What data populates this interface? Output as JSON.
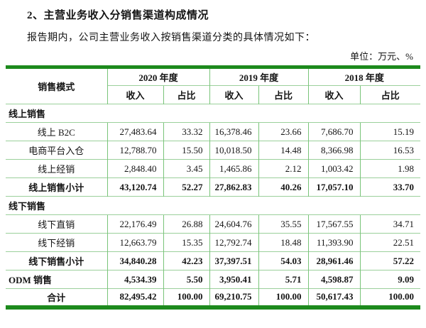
{
  "page": {
    "title": "2、主营业务收入分销售渠道构成情况",
    "intro": "报告期内，公司主营业务收入按销售渠道分类的具体情况如下：",
    "unit_note": "单位：万元、%"
  },
  "colors": {
    "table_frame_green": "#1d8a1d",
    "horizontal_rule_green": "#9bd09b",
    "vertical_rule_green": "#79c479",
    "text": "#141414",
    "background": "#ffffff"
  },
  "table": {
    "header": {
      "col_mode": "销售模式",
      "years": [
        "2020 年度",
        "2019 年度",
        "2018 年度"
      ],
      "sub_cols": [
        "收入",
        "占比"
      ]
    },
    "rows": [
      {
        "type": "section",
        "label": "线上销售",
        "values": []
      },
      {
        "type": "data",
        "label": "线上 B2C",
        "values": [
          "27,483.64",
          "33.32",
          "16,378.46",
          "23.66",
          "7,686.70",
          "15.19"
        ]
      },
      {
        "type": "data",
        "label": "电商平台入仓",
        "values": [
          "12,788.70",
          "15.50",
          "10,018.50",
          "14.48",
          "8,366.98",
          "16.53"
        ]
      },
      {
        "type": "data",
        "label": "线上经销",
        "values": [
          "2,848.40",
          "3.45",
          "1,465.86",
          "2.12",
          "1,003.42",
          "1.98"
        ]
      },
      {
        "type": "subtotal",
        "label": "线上销售小计",
        "values": [
          "43,120.74",
          "52.27",
          "27,862.83",
          "40.26",
          "17,057.10",
          "33.70"
        ]
      },
      {
        "type": "section",
        "label": "线下销售",
        "values": []
      },
      {
        "type": "data",
        "label": "线下直销",
        "values": [
          "22,176.49",
          "26.88",
          "24,604.76",
          "35.55",
          "17,567.55",
          "34.71"
        ]
      },
      {
        "type": "data",
        "label": "线下经销",
        "values": [
          "12,663.79",
          "15.35",
          "12,792.74",
          "18.48",
          "11,393.90",
          "22.51"
        ]
      },
      {
        "type": "subtotal",
        "label": "线下销售小计",
        "values": [
          "34,840.28",
          "42.23",
          "37,397.51",
          "54.03",
          "28,961.46",
          "57.22"
        ]
      },
      {
        "type": "odm",
        "label": "ODM 销售",
        "values": [
          "4,534.39",
          "5.50",
          "3,950.41",
          "5.71",
          "4,598.87",
          "9.09"
        ]
      },
      {
        "type": "total",
        "label": "合计",
        "values": [
          "82,495.42",
          "100.00",
          "69,210.75",
          "100.00",
          "50,617.43",
          "100.00"
        ]
      }
    ]
  }
}
